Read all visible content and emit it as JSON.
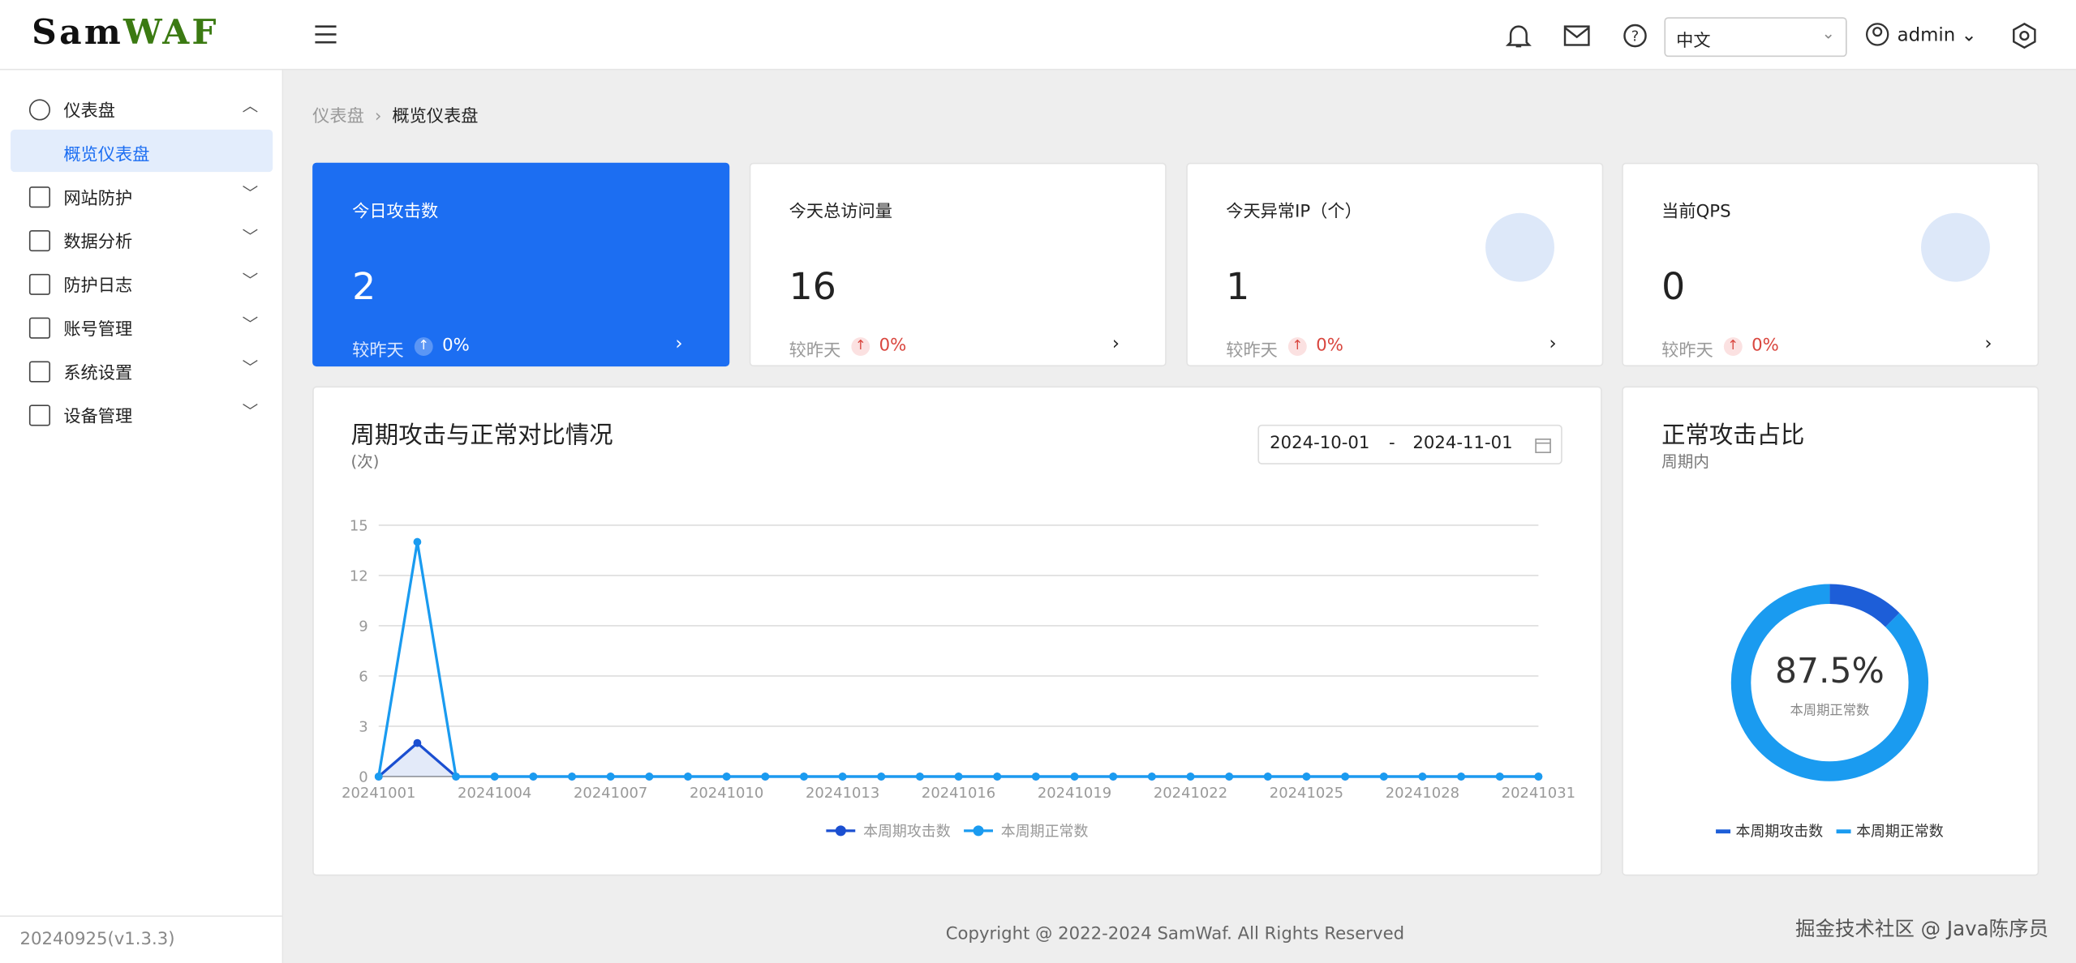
{
  "header": {
    "logo_prefix": "Sam",
    "logo_suffix": "WAF",
    "language": "中文",
    "user": "admin"
  },
  "sidebar": {
    "menu": [
      {
        "label": "仪表盘",
        "children": [
          "概览仪表盘"
        ]
      },
      {
        "label": "网站防护"
      },
      {
        "label": "数据分析"
      },
      {
        "label": "防护日志"
      },
      {
        "label": "账号管理"
      },
      {
        "label": "系统设置"
      },
      {
        "label": "设备管理"
      }
    ],
    "version": "20240925(v1.3.3)"
  },
  "breadcrumb": [
    "仪表盘",
    "概览仪表盘"
  ],
  "cards": [
    {
      "title": "今日攻击数",
      "value": 2,
      "compare": "较昨天",
      "change": "0%"
    },
    {
      "title": "今天总访问量",
      "value": 16,
      "compare": "较昨天",
      "change": "0%"
    },
    {
      "title": "今天异常IP（个）",
      "value": 1,
      "compare": "较昨天",
      "change": "0%"
    },
    {
      "title": "当前QPS",
      "value": 0,
      "compare": "较昨天",
      "change": "0%"
    }
  ],
  "chart_data": [
    {
      "type": "line",
      "title": "周期攻击与正常对比情况",
      "subtitle": "(次)",
      "date_start": "2024-10-01",
      "date_separator": "-",
      "date_end": "2024-11-01",
      "categories": [
        "20241001",
        null,
        null,
        "20241004",
        null,
        null,
        "20241007",
        null,
        null,
        "20241010",
        null,
        null,
        "20241013",
        null,
        null,
        "20241016",
        null,
        null,
        "20241019",
        null,
        null,
        "20241022",
        null,
        null,
        "20241025",
        null,
        null,
        "20241028",
        null,
        null,
        "20241031"
      ],
      "series": [
        {
          "name": "本周期攻击数",
          "color": "#1b4fd1",
          "values": [
            0,
            2,
            0,
            0,
            0,
            0,
            0,
            0,
            0,
            0,
            0,
            0,
            0,
            0,
            0,
            0,
            0,
            0,
            0,
            0,
            0,
            0,
            0,
            0,
            0,
            0,
            0,
            0,
            0,
            0,
            0
          ]
        },
        {
          "name": "本周期正常数",
          "color": "#1a9bf0",
          "values": [
            0,
            14,
            0,
            0,
            0,
            0,
            0,
            0,
            0,
            0,
            0,
            0,
            0,
            0,
            0,
            0,
            0,
            0,
            0,
            0,
            0,
            0,
            0,
            0,
            0,
            0,
            0,
            0,
            0,
            0,
            0
          ]
        }
      ],
      "ylim": [
        0,
        15
      ],
      "yticks": [
        0,
        3,
        6,
        9,
        12,
        15
      ],
      "grid": true
    },
    {
      "type": "pie",
      "title": "正常攻击占比",
      "subtitle": "周期内",
      "categories": [
        "本周期攻击数",
        "本周期正常数"
      ],
      "values": [
        2,
        14
      ],
      "colors": [
        "#1d5ed8",
        "#1a9bf0"
      ],
      "center_label": "87.5%"
    }
  ],
  "footer": "Copyright @ 2022-2024 SamWaf. All Rights Reserved",
  "watermark": "掘金技术社区 @ Java陈序员"
}
